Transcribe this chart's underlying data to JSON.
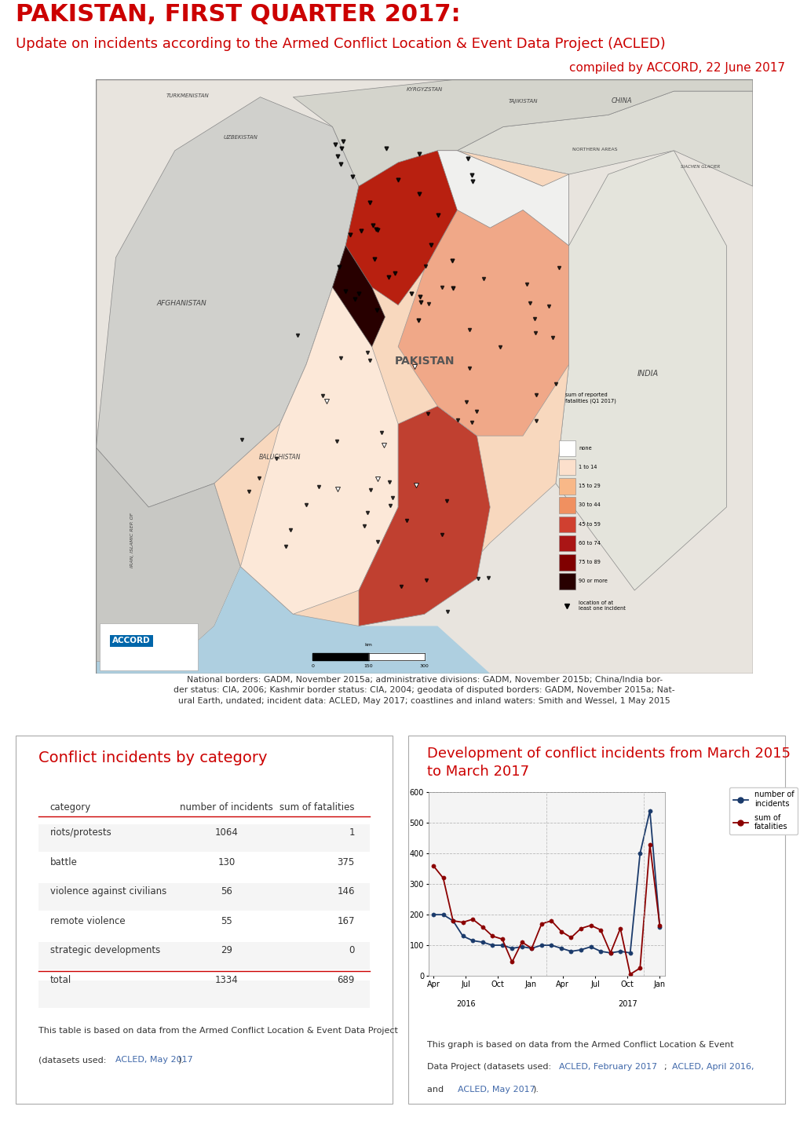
{
  "title_line1": "PAKISTAN, FIRST QUARTER 2017:",
  "title_line2": "Update on incidents according to the Armed Conflict Location & Event Data Project (ACLED)",
  "title_line3": "compiled by ACCORD, 22 June 2017",
  "title_color": "#cc0000",
  "bg_color": "#ffffff",
  "table_title": "Conflict incidents by category",
  "table_title_color": "#cc0000",
  "table_headers": [
    "category",
    "number of incidents",
    "sum of fatalities"
  ],
  "table_rows": [
    [
      "riots/protests",
      "1064",
      "1"
    ],
    [
      "battle",
      "130",
      "375"
    ],
    [
      "violence against civilians",
      "56",
      "146"
    ],
    [
      "remote violence",
      "55",
      "167"
    ],
    [
      "strategic developments",
      "29",
      "0"
    ]
  ],
  "table_total": [
    "total",
    "1334",
    "689"
  ],
  "chart_title": "Development of conflict incidents from March 2015\nto March 2017",
  "chart_title_color": "#cc0000",
  "chart_xlabel_ticks": [
    "Apr",
    "Jul",
    "Oct",
    "Jan",
    "Apr",
    "Jul",
    "Oct",
    "Jan"
  ],
  "incidents": [
    200,
    200,
    180,
    130,
    115,
    110,
    100,
    100,
    90,
    95,
    90,
    100,
    100,
    90,
    80,
    85,
    95,
    80,
    75,
    80,
    75,
    400,
    540,
    160
  ],
  "fatalities": [
    360,
    320,
    180,
    175,
    185,
    160,
    130,
    120,
    45,
    110,
    90,
    170,
    180,
    145,
    125,
    155,
    165,
    150,
    75,
    155,
    5,
    25,
    430,
    165
  ],
  "incidents_color": "#1a3a6b",
  "fatalities_color": "#8b0000",
  "link_color": "#4169aa",
  "separator_color": "#cc0000"
}
